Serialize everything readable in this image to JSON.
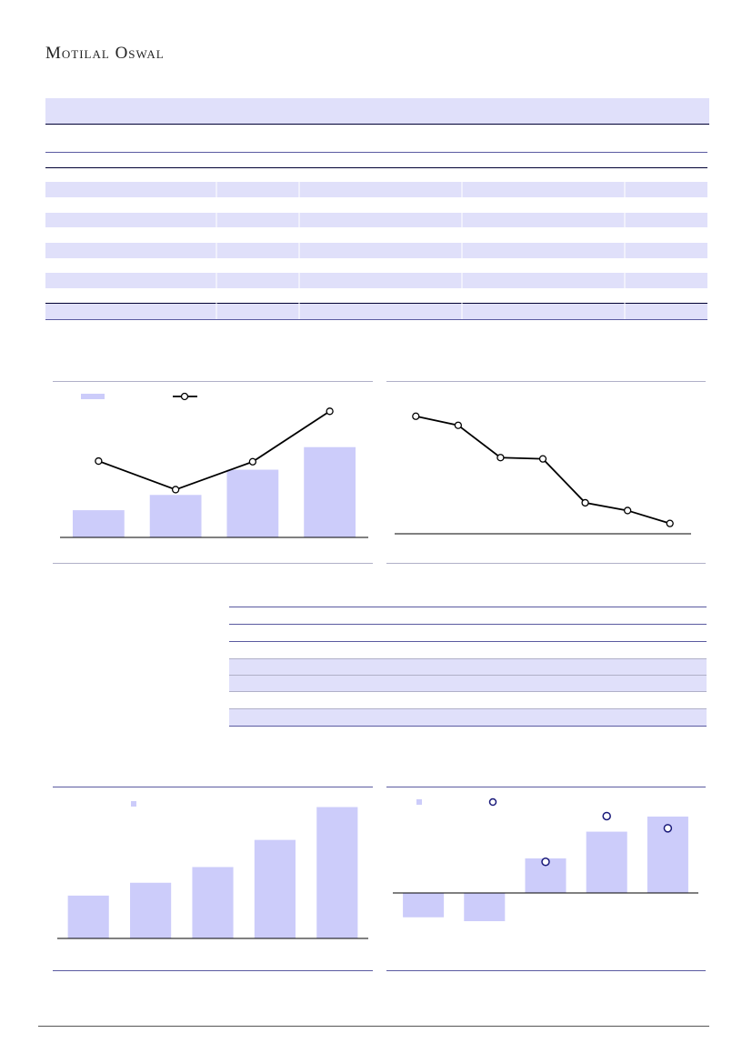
{
  "header": {
    "brand": "Motilal Oswal"
  },
  "chart_data": [
    {
      "type": "bar",
      "categories": [
        null,
        null,
        null,
        null
      ],
      "ylim": [
        0,
        100
      ],
      "y2lim": [
        0,
        100
      ],
      "series": [
        {
          "color": "#ccccfa",
          "values": [
            20.5,
            32,
            51,
            68
          ]
        },
        {
          "color": "#000000",
          "axis": "y2",
          "values": [
            57.5,
            36,
            57,
            95
          ]
        }
      ]
    },
    {
      "type": "line",
      "categories": [
        null,
        null,
        null,
        null,
        null,
        null,
        null
      ],
      "ylim": [
        0,
        100
      ],
      "series": [
        {
          "color": "#000000",
          "values": [
            91,
            84,
            59,
            58,
            24,
            18,
            8
          ]
        }
      ]
    },
    {
      "type": "bar",
      "categories": [
        null,
        null,
        null,
        null,
        null
      ],
      "ylim": [
        0,
        100
      ],
      "series": [
        {
          "color": "#ccccfa",
          "values": [
            30,
            39,
            50,
            69,
            92
          ]
        }
      ]
    },
    {
      "type": "bar",
      "categories": [
        null,
        null,
        null,
        null,
        null
      ],
      "ylim": [
        -50,
        100
      ],
      "series": [
        {
          "color": "#ccccfa",
          "values": [
            -25,
            -29,
            35.5,
            63,
            78.5
          ]
        },
        {
          "color": "#1a1a7a",
          "marker": "circle",
          "values": [
            null,
            null,
            32,
            79,
            66.5
          ]
        }
      ]
    }
  ]
}
